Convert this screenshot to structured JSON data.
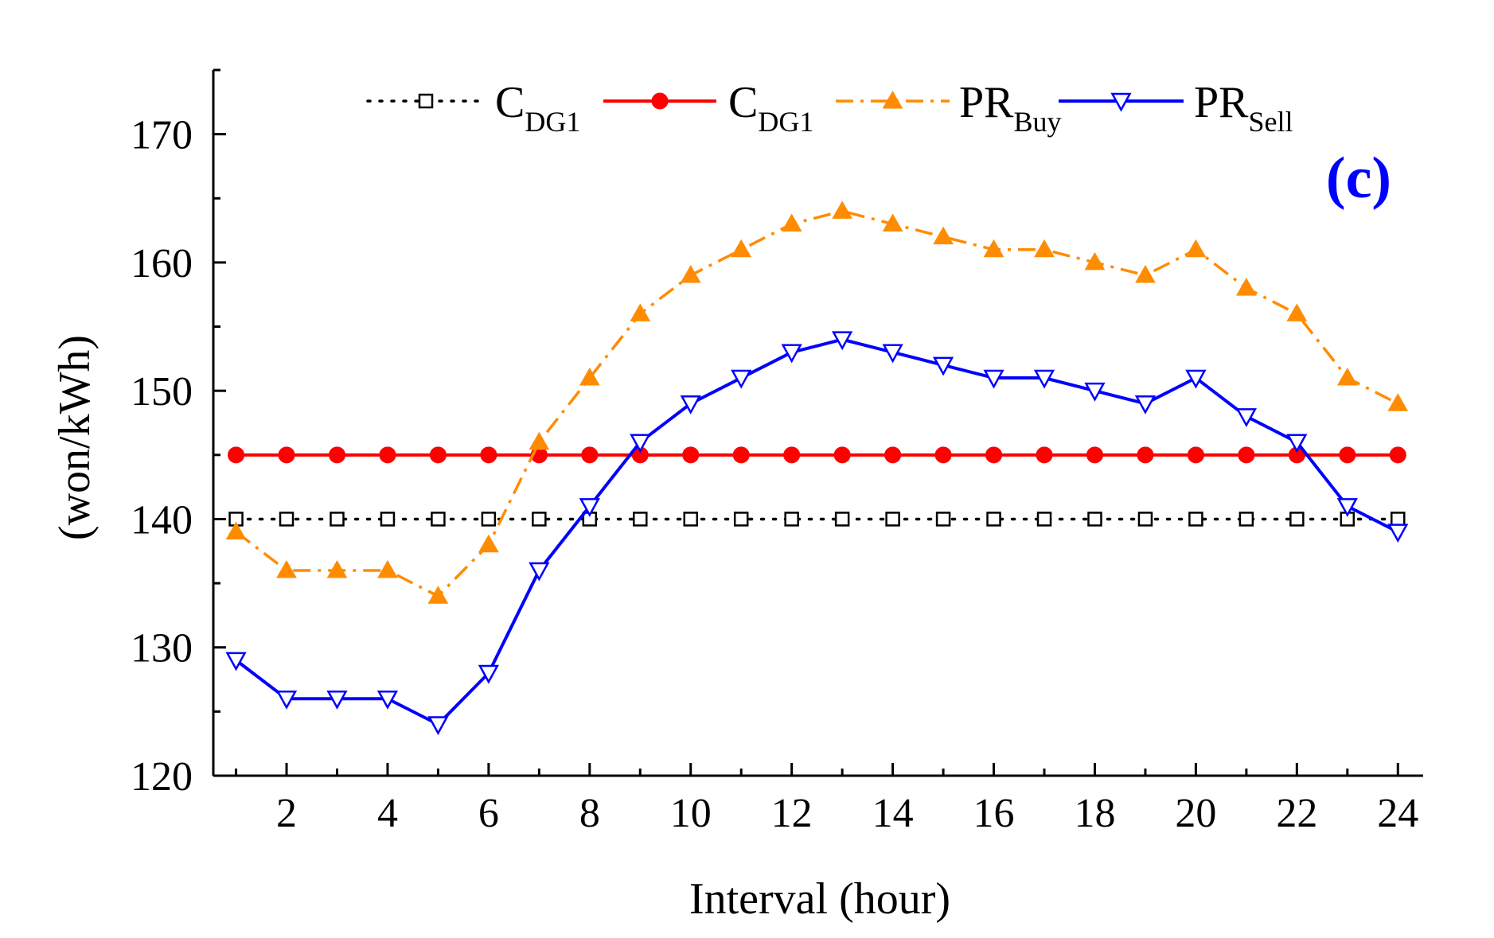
{
  "chart_data": {
    "type": "line",
    "panel_label": "(c)",
    "xlabel": "Interval (hour)",
    "ylabel": "(won/kWh)",
    "xlim": [
      0.55,
      24.5
    ],
    "ylim": [
      120,
      175
    ],
    "x_ticks": [
      2,
      4,
      6,
      8,
      10,
      12,
      14,
      16,
      18,
      20,
      22,
      24
    ],
    "y_ticks": [
      120,
      130,
      140,
      150,
      160,
      170
    ],
    "x": [
      1,
      2,
      3,
      4,
      5,
      6,
      7,
      8,
      9,
      10,
      11,
      12,
      13,
      14,
      15,
      16,
      17,
      18,
      19,
      20,
      21,
      22,
      23,
      24
    ],
    "series": [
      {
        "name": "C",
        "subscript": "DG1",
        "color": "#000000",
        "style": "dotted",
        "marker": "open-square",
        "values": [
          140,
          140,
          140,
          140,
          140,
          140,
          140,
          140,
          140,
          140,
          140,
          140,
          140,
          140,
          140,
          140,
          140,
          140,
          140,
          140,
          140,
          140,
          140,
          140
        ]
      },
      {
        "name": "C",
        "subscript": "DG1",
        "color": "#ff0000",
        "style": "solid",
        "marker": "filled-circle",
        "values": [
          145,
          145,
          145,
          145,
          145,
          145,
          145,
          145,
          145,
          145,
          145,
          145,
          145,
          145,
          145,
          145,
          145,
          145,
          145,
          145,
          145,
          145,
          145,
          145
        ]
      },
      {
        "name": "PR",
        "subscript": "Buy",
        "color": "#ff8c00",
        "style": "dash-dot",
        "marker": "filled-triangle-up",
        "values": [
          139,
          136,
          136,
          136,
          134,
          138,
          146,
          151,
          156,
          159,
          161,
          163,
          164,
          163,
          162,
          161,
          161,
          160,
          159,
          161,
          158,
          156,
          151,
          149
        ]
      },
      {
        "name": "PR",
        "subscript": "Sell",
        "color": "#0000ff",
        "style": "solid",
        "marker": "open-triangle-down",
        "values": [
          129,
          126,
          126,
          126,
          124,
          128,
          136,
          141,
          146,
          149,
          151,
          153,
          154,
          153,
          152,
          151,
          151,
          150,
          149,
          151,
          148,
          146,
          141,
          139
        ]
      }
    ]
  }
}
